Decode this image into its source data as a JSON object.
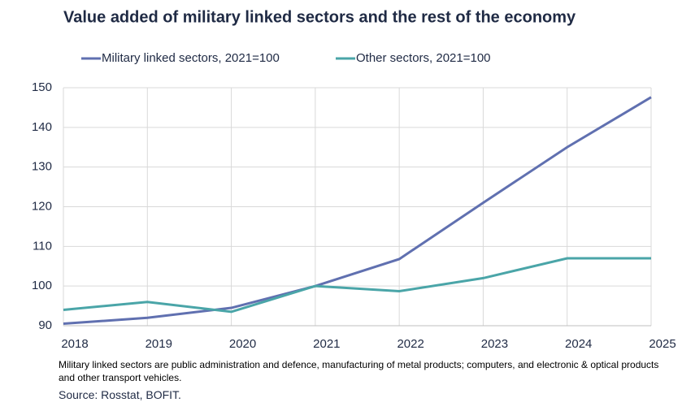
{
  "chart_data": {
    "type": "line",
    "title": "Value added of military linked sectors and the rest of the economy",
    "x": [
      2018,
      2019,
      2020,
      2021,
      2022,
      2023,
      2024,
      2025
    ],
    "series": [
      {
        "name": "Military linked sectors, 2021=100",
        "color": "#6070b0",
        "values": [
          90.5,
          92,
          94.5,
          100,
          106.8,
          121,
          135,
          147.6
        ]
      },
      {
        "name": "Other sectors, 2021=100",
        "color": "#4aa5a8",
        "values": [
          94,
          96,
          93.5,
          100,
          98.7,
          102,
          107,
          107
        ]
      }
    ],
    "xlim": [
      2018,
      2025
    ],
    "xticks": [
      2018,
      2019,
      2020,
      2021,
      2022,
      2023,
      2024,
      2025
    ],
    "ylim": [
      90,
      150
    ],
    "yticks": [
      90,
      100,
      110,
      120,
      130,
      140,
      150
    ],
    "grid": true,
    "note": "Military linked sectors are public administration and defence, manufacturing of metal products; computers, and electronic & optical products and other transport vehicles.",
    "source": "Source: Rosstat, BOFIT."
  }
}
